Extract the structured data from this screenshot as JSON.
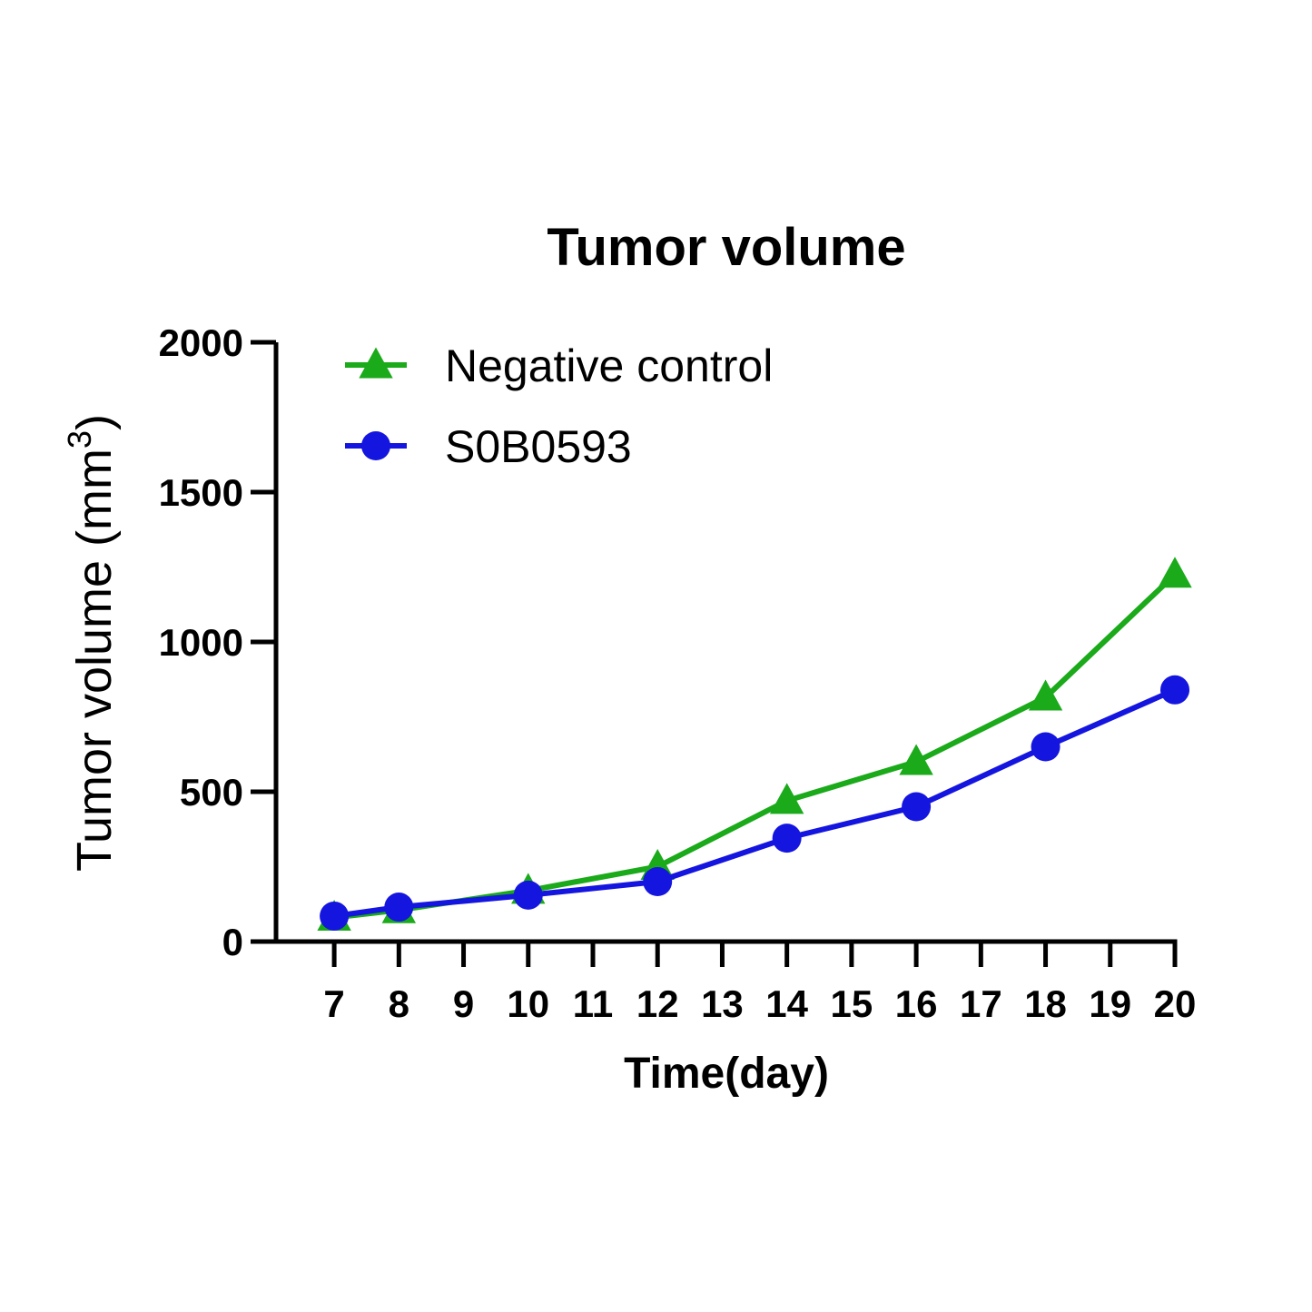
{
  "chart_data": {
    "type": "line",
    "title": "Tumor volume",
    "xlabel": "Time(day)",
    "ylabel_main": "Tumor volume (mm",
    "ylabel_sup": "3",
    "ylabel_close": ")",
    "xlim": [
      6.1,
      20
    ],
    "ylim": [
      0,
      2000
    ],
    "x_ticks": [
      7,
      8,
      9,
      10,
      11,
      12,
      13,
      14,
      15,
      16,
      17,
      18,
      19,
      20
    ],
    "y_ticks": [
      0,
      500,
      1000,
      1500,
      2000
    ],
    "x": [
      7,
      8,
      10,
      12,
      14,
      16,
      18,
      20
    ],
    "series": [
      {
        "name": "Negative control",
        "marker": "triangle",
        "color": "#1aaa1a",
        "values": [
          80,
          105,
          170,
          250,
          470,
          600,
          815,
          1225
        ]
      },
      {
        "name": "S0B0593",
        "marker": "circle",
        "color": "#1515e0",
        "values": [
          85,
          115,
          155,
          200,
          345,
          450,
          650,
          840
        ]
      }
    ],
    "legend": "top-left"
  }
}
